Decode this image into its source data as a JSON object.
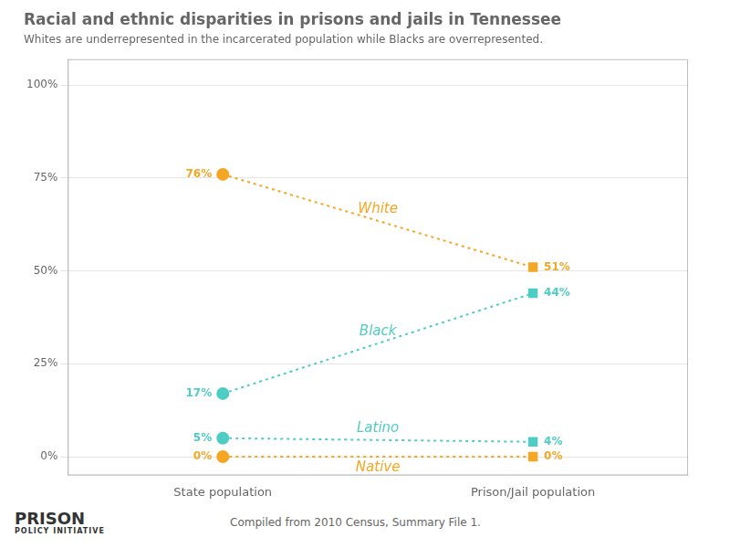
{
  "chart_data": {
    "type": "line",
    "title": "Racial and ethnic disparities in prisons and jails in Tennessee",
    "subtitle": "Whites are underrepresented in the incarcerated population while Blacks are overrepresented.",
    "footer": "Compiled from 2010 Census, Summary File 1.",
    "annotations": [
      "PRISON",
      "POLICY INITIATIVE"
    ],
    "categories": [
      "State population",
      "Prison/Jail population"
    ],
    "series": [
      {
        "name": "White",
        "color": "#f5a623",
        "values": [
          76,
          51
        ],
        "value_labels": [
          "76%",
          "51%"
        ]
      },
      {
        "name": "Black",
        "color": "#4ecdc4",
        "values": [
          17,
          44
        ],
        "value_labels": [
          "17%",
          "44%"
        ]
      },
      {
        "name": "Latino",
        "color": "#4ecdc4",
        "values": [
          5,
          4
        ],
        "value_labels": [
          "5%",
          "4%"
        ]
      },
      {
        "name": "Native",
        "color": "#f5a623",
        "values": [
          0,
          0
        ],
        "value_labels": [
          "0%",
          "0%"
        ]
      }
    ],
    "ylim": [
      -5,
      107
    ],
    "yticks": [
      {
        "value": 0,
        "label": "0%"
      },
      {
        "value": 25,
        "label": "25%"
      },
      {
        "value": 50,
        "label": "50%"
      },
      {
        "value": 75,
        "label": "75%"
      },
      {
        "value": 100,
        "label": "100%"
      }
    ],
    "grid": true,
    "data_labels": true,
    "line_style": "dotted"
  }
}
